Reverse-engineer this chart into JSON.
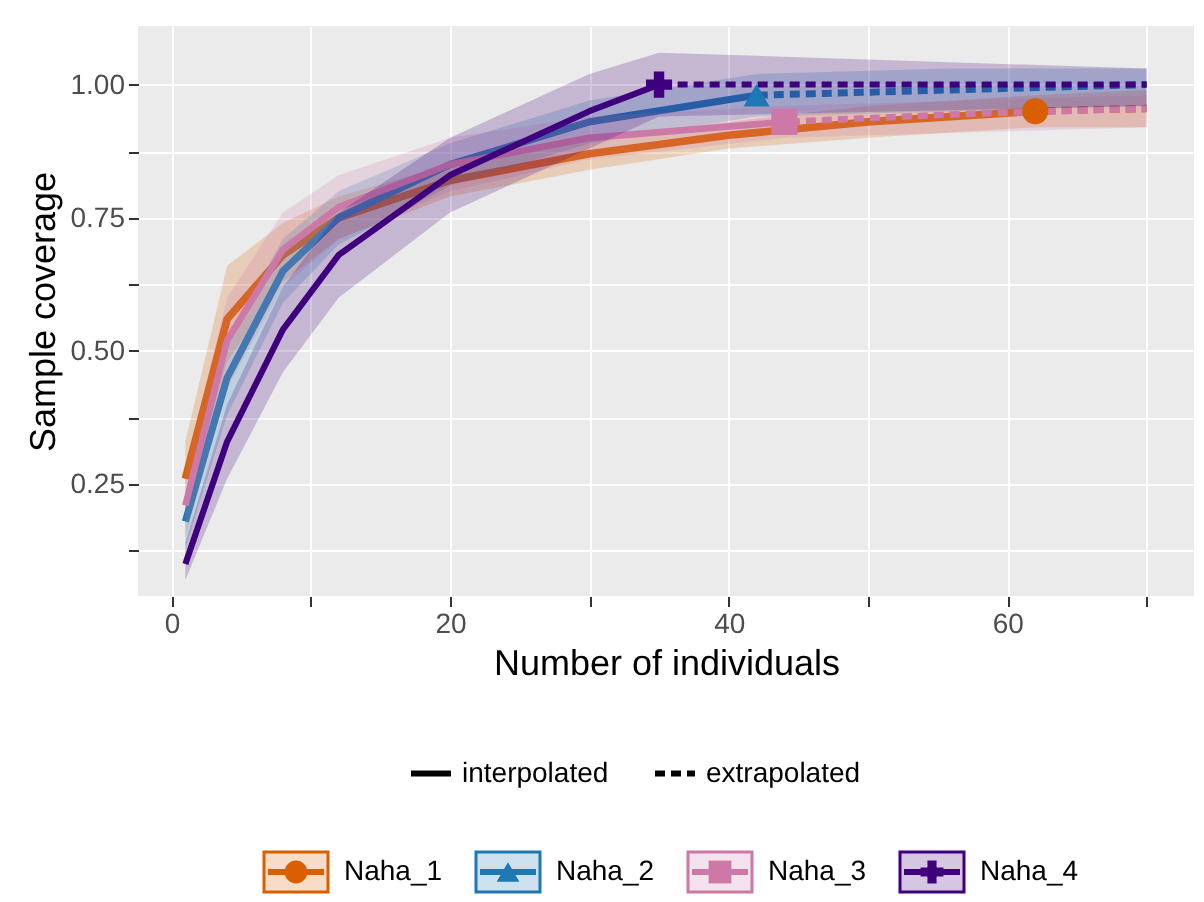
{
  "chart_data": {
    "type": "line",
    "xlabel": "Number of individuals",
    "ylabel": "Sample coverage",
    "xlim": [
      -2.4,
      73.4
    ],
    "ylim": [
      0.04,
      1.11
    ],
    "xticks": [
      0,
      {
        "value": 10,
        "label": null
      },
      20,
      {
        "value": 30,
        "label": null
      },
      40,
      {
        "value": 50,
        "label": null
      },
      60,
      {
        "value": 70,
        "label": null
      }
    ],
    "yticks": [
      {
        "value": 0.125,
        "label": null
      },
      {
        "value": 0.25,
        "label": "0.25"
      },
      {
        "value": 0.375,
        "label": null
      },
      {
        "value": 0.5,
        "label": "0.50"
      },
      {
        "value": 0.625,
        "label": null
      },
      {
        "value": 0.75,
        "label": "0.75"
      },
      {
        "value": 0.875,
        "label": null
      },
      {
        "value": 1,
        "label": "1.00"
      }
    ],
    "grid": true,
    "legend": "bottom",
    "annotations": [
      "interpolated",
      "extrapolated"
    ],
    "series": [
      {
        "line_style": "solid",
        "color": "#d95f02",
        "x": [
          1,
          4,
          8,
          12,
          20,
          30,
          40,
          50,
          62
        ],
        "values": [
          0.26,
          0.56,
          0.68,
          0.75,
          0.82,
          0.87,
          0.905,
          0.93,
          0.95
        ],
        "lower": [
          0.2,
          0.48,
          0.63,
          0.71,
          0.79,
          0.84,
          0.88,
          0.9,
          0.92
        ],
        "upper": [
          0.33,
          0.66,
          0.74,
          0.79,
          0.85,
          0.9,
          0.93,
          0.96,
          0.98
        ]
      },
      {
        "line_style": "dashed",
        "color": "#d95f02",
        "x": [
          62,
          66,
          70
        ],
        "values": [
          0.95,
          0.953,
          0.955
        ],
        "lower": [
          0.92,
          0.92,
          0.92
        ],
        "upper": [
          0.98,
          0.985,
          0.99
        ]
      },
      {
        "type": "scatter",
        "name": "Naha_1",
        "marker": "circle",
        "color": "#d95f02",
        "x": [
          62
        ],
        "values": [
          0.95
        ]
      },
      {
        "line_style": "solid",
        "color": "#1f78b4",
        "x": [
          1,
          4,
          8,
          12,
          20,
          30,
          42
        ],
        "values": [
          0.18,
          0.45,
          0.65,
          0.75,
          0.85,
          0.93,
          0.98
        ],
        "lower": [
          0.13,
          0.38,
          0.59,
          0.7,
          0.81,
          0.89,
          0.94
        ],
        "upper": [
          0.23,
          0.52,
          0.71,
          0.8,
          0.89,
          0.97,
          1.02
        ]
      },
      {
        "line_style": "dashed",
        "color": "#1f78b4",
        "x": [
          42,
          56,
          70
        ],
        "values": [
          0.98,
          0.99,
          1.0
        ],
        "lower": [
          0.94,
          0.95,
          0.96
        ],
        "upper": [
          1.02,
          1.03,
          1.03
        ]
      },
      {
        "type": "scatter",
        "name": "Naha_2",
        "marker": "triangle",
        "color": "#1f78b4",
        "x": [
          42
        ],
        "values": [
          0.98
        ]
      },
      {
        "line_style": "solid",
        "color": "#cc79a7",
        "x": [
          1,
          4,
          8,
          12,
          20,
          30,
          44
        ],
        "values": [
          0.21,
          0.52,
          0.69,
          0.77,
          0.85,
          0.9,
          0.93
        ],
        "lower": [
          0.15,
          0.43,
          0.62,
          0.71,
          0.8,
          0.86,
          0.9
        ],
        "upper": [
          0.28,
          0.6,
          0.76,
          0.83,
          0.9,
          0.94,
          0.96
        ]
      },
      {
        "line_style": "dashed",
        "color": "#cc79a7",
        "x": [
          44,
          57,
          70
        ],
        "values": [
          0.93,
          0.945,
          0.955
        ],
        "lower": [
          0.9,
          0.91,
          0.92
        ],
        "upper": [
          0.96,
          0.97,
          0.98
        ]
      },
      {
        "type": "scatter",
        "name": "Naha_3",
        "marker": "square",
        "color": "#cc79a7",
        "x": [
          44
        ],
        "values": [
          0.93
        ]
      },
      {
        "line_style": "solid",
        "color": "#3f007d",
        "x": [
          1,
          4,
          8,
          12,
          20,
          30,
          35
        ],
        "values": [
          0.1,
          0.33,
          0.54,
          0.68,
          0.83,
          0.95,
          1.0
        ],
        "lower": [
          0.07,
          0.26,
          0.46,
          0.6,
          0.76,
          0.88,
          0.94
        ],
        "upper": [
          0.14,
          0.4,
          0.62,
          0.76,
          0.9,
          1.02,
          1.06
        ]
      },
      {
        "line_style": "dashed",
        "color": "#3f007d",
        "x": [
          35,
          70
        ],
        "values": [
          1.0,
          1.0
        ],
        "lower": [
          0.94,
          0.96
        ],
        "upper": [
          1.06,
          1.03
        ]
      },
      {
        "type": "scatter",
        "name": "Naha_4",
        "marker": "cross",
        "color": "#3f007d",
        "x": [
          35
        ],
        "values": [
          1.0
        ]
      }
    ]
  }
}
